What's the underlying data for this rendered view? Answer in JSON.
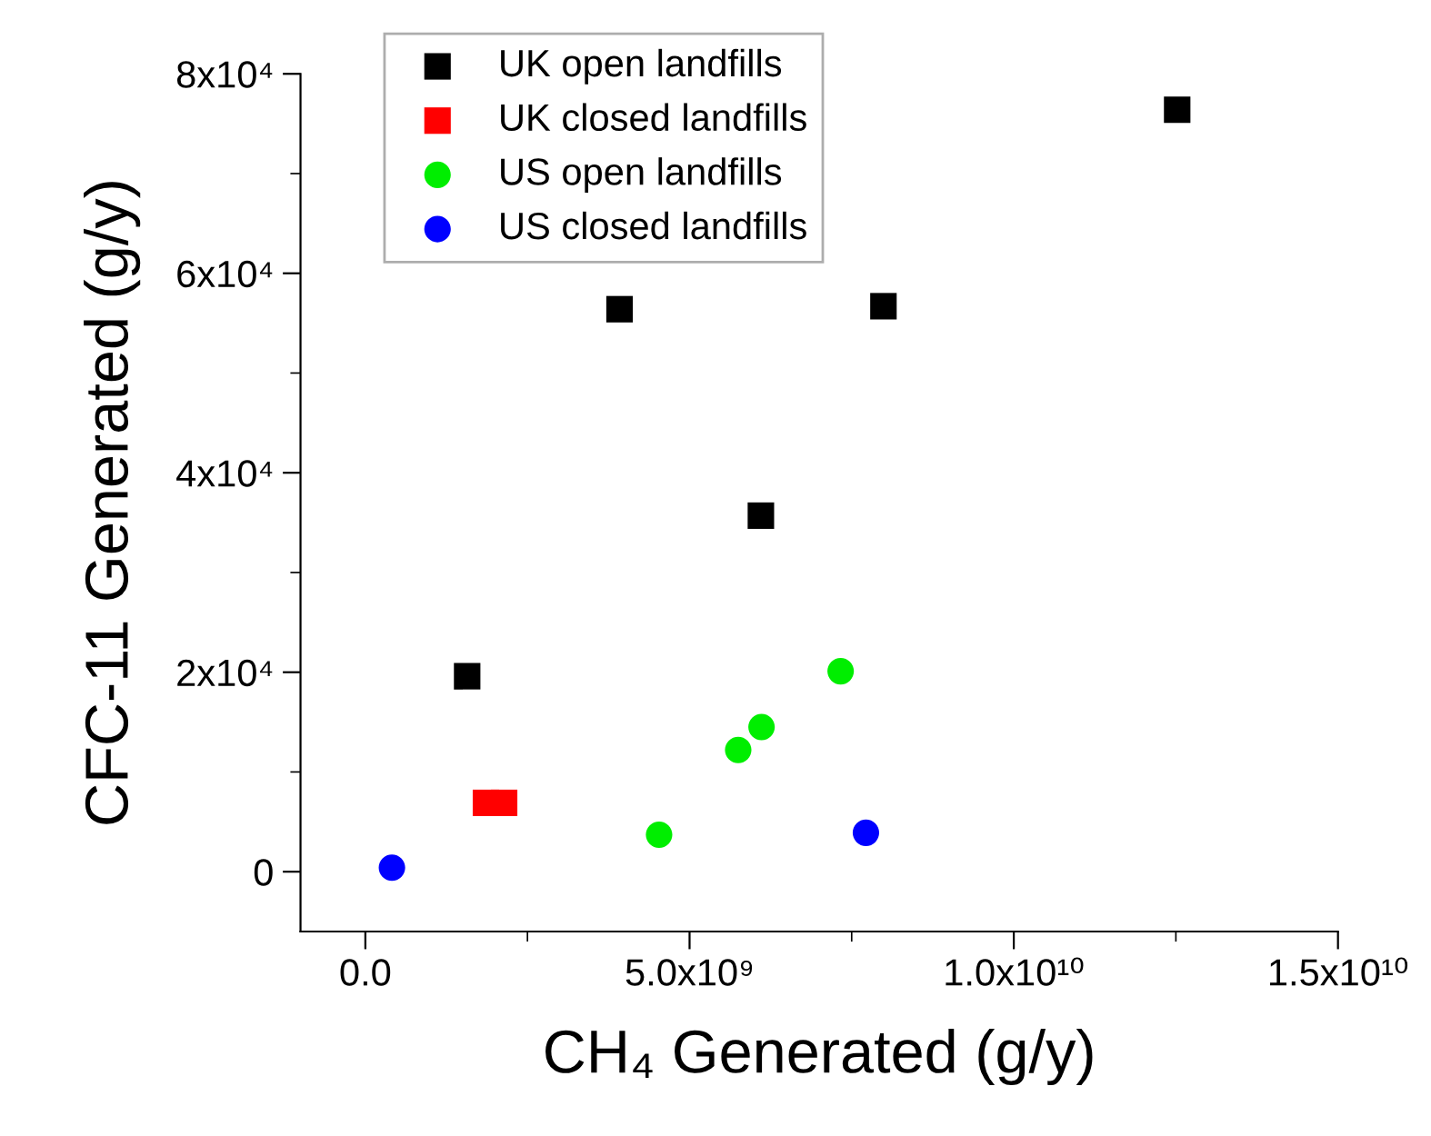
{
  "chart_data": {
    "type": "scatter",
    "xlabel": "CH₄ Generated (g/y)",
    "ylabel": "CFC-11 Generated (g/y)",
    "xlim": [
      -1000000000.0,
      15000000000.0
    ],
    "ylim": [
      -6000,
      80000
    ],
    "xticks": [
      {
        "value": 0,
        "label": "0.0"
      },
      {
        "value": 5000000000.0,
        "label": "5.0x10⁹"
      },
      {
        "value": 10000000000.0,
        "label": "1.0x10¹⁰"
      },
      {
        "value": 15000000000.0,
        "label": "1.5x10¹⁰"
      }
    ],
    "yticks": [
      0,
      {
        "value": 20000,
        "label": "2x10⁴"
      },
      {
        "value": 40000,
        "label": "4x10⁴"
      },
      {
        "value": 60000,
        "label": "6x10⁴"
      },
      {
        "value": 80000,
        "label": "8x10⁴"
      }
    ],
    "grid": false,
    "legend": "top left",
    "series": [
      {
        "name": "UK open landfills",
        "color": "#000000",
        "marker": "square",
        "x": [
          1570000000.0,
          3920000000.0,
          6100000000.0,
          7990000000.0,
          12520000000.0
        ],
        "values": [
          19600,
          56400,
          35700,
          56700,
          76400
        ]
      },
      {
        "name": "UK closed landfills",
        "color": "#ff0000",
        "marker": "square",
        "x": [
          1860000000.0,
          2140000000.0
        ],
        "values": [
          6900,
          6900
        ]
      },
      {
        "name": "US open landfills",
        "color": "#00ee00",
        "marker": "circle",
        "x": [
          4530000000.0,
          5750000000.0,
          6110000000.0,
          7330000000.0
        ],
        "values": [
          3700,
          12200,
          14500,
          20100
        ]
      },
      {
        "name": "US closed landfills",
        "color": "#0000ff",
        "marker": "circle",
        "x": [
          410000000.0,
          7720000000.0
        ],
        "values": [
          400,
          3900
        ]
      }
    ]
  }
}
